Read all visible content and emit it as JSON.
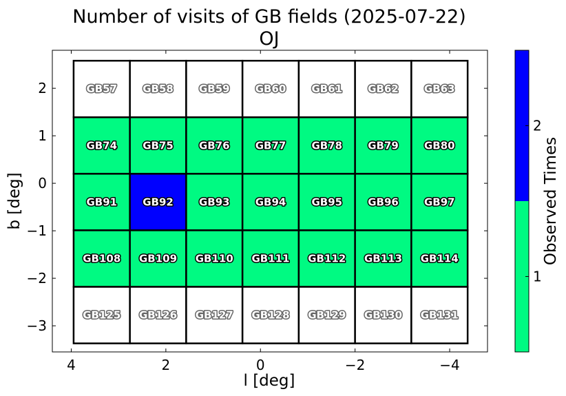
{
  "chart_data": {
    "type": "heatmap",
    "title": "Number of visits of GB fields (2025-07-22)",
    "subtitle": "OJ",
    "xlabel": "l [deg]",
    "ylabel": "b [deg]",
    "xlim": [
      4.4,
      -4.8
    ],
    "ylim": [
      -3.55,
      2.8
    ],
    "x_ticks": [
      4,
      2,
      0,
      -2,
      -4
    ],
    "x_tick_labels": [
      "4",
      "2",
      "0",
      "−2",
      "−4"
    ],
    "y_ticks": [
      2,
      1,
      0,
      -1,
      -2,
      -3
    ],
    "y_tick_labels": [
      "2",
      "1",
      "0",
      "−1",
      "−2",
      "−3"
    ],
    "field_l_edges": [
      3.95,
      2.76,
      1.57,
      0.38,
      -0.81,
      -2.0,
      -3.19,
      -4.38
    ],
    "field_b_edges": [
      2.58,
      1.39,
      0.2,
      -0.99,
      -2.18,
      -3.37
    ],
    "fields": [
      [
        "GB57",
        "GB58",
        "GB59",
        "GB60",
        "GB61",
        "GB62",
        "GB63"
      ],
      [
        "GB74",
        "GB75",
        "GB76",
        "GB77",
        "GB78",
        "GB79",
        "GB80"
      ],
      [
        "GB91",
        "GB92",
        "GB93",
        "GB94",
        "GB95",
        "GB96",
        "GB97"
      ],
      [
        "GB108",
        "GB109",
        "GB110",
        "GB111",
        "GB112",
        "GB113",
        "GB114"
      ],
      [
        "GB125",
        "GB126",
        "GB127",
        "GB128",
        "GB129",
        "GB130",
        "GB131"
      ]
    ],
    "visits": [
      [
        0,
        0,
        0,
        0,
        0,
        0,
        0
      ],
      [
        1,
        1,
        1,
        1,
        1,
        1,
        1
      ],
      [
        1,
        2,
        1,
        1,
        1,
        1,
        1
      ],
      [
        1,
        1,
        1,
        1,
        1,
        1,
        1
      ],
      [
        0,
        0,
        0,
        0,
        0,
        0,
        0
      ]
    ],
    "colorbar": {
      "label": "Observed Times",
      "ticks": [
        1,
        2
      ],
      "tick_labels": [
        "1",
        "2"
      ],
      "levels": [
        {
          "value": 1,
          "color": "#00fa82"
        },
        {
          "value": 2,
          "color": "#0000ff"
        }
      ],
      "unobserved_color": "#ffffff"
    },
    "grid": false
  }
}
